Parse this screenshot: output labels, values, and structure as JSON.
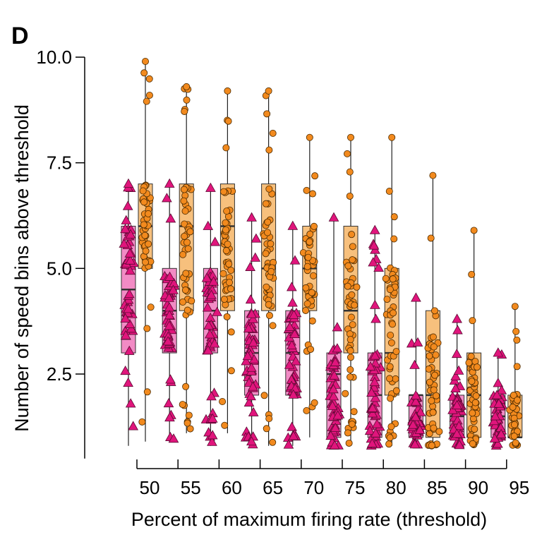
{
  "panel_label": "D",
  "chart_data": {
    "type": "box",
    "title": "",
    "xlabel": "Percent of maximum firing rate (threshold)",
    "ylabel": "Number of speed bins above threshold",
    "categories": [
      "50",
      "55",
      "60",
      "65",
      "70",
      "75",
      "80",
      "85",
      "90",
      "95"
    ],
    "ylim": [
      0.5,
      10.0
    ],
    "yticks": [
      "2.5",
      "5.0",
      "7.5",
      "10.0"
    ],
    "grid": false,
    "legend": "none",
    "series": [
      {
        "marker": "triangle",
        "color": "#e0157c",
        "box_color": "#f28bc5",
        "boxes": [
          {
            "min": 0.8,
            "q1": 3.0,
            "median": 4.5,
            "q3": 6.0,
            "max": 7.0
          },
          {
            "min": 0.9,
            "q1": 3.0,
            "median": 4.0,
            "q3": 5.0,
            "max": 7.0
          },
          {
            "min": 0.8,
            "q1": 3.0,
            "median": 4.0,
            "q3": 5.0,
            "max": 6.9
          },
          {
            "min": 0.8,
            "q1": 2.0,
            "median": 3.0,
            "q3": 4.0,
            "max": 6.2
          },
          {
            "min": 0.8,
            "q1": 2.0,
            "median": 3.0,
            "q3": 4.0,
            "max": 6.0
          },
          {
            "min": 0.8,
            "q1": 1.0,
            "median": 2.5,
            "q3": 3.0,
            "max": 6.2
          },
          {
            "min": 0.8,
            "q1": 1.0,
            "median": 2.0,
            "q3": 3.0,
            "max": 5.9
          },
          {
            "min": 0.8,
            "q1": 1.0,
            "median": 2.0,
            "q3": 2.0,
            "max": 4.3
          },
          {
            "min": 0.8,
            "q1": 1.0,
            "median": 1.5,
            "q3": 2.0,
            "max": 3.8
          },
          {
            "min": 0.8,
            "q1": 1.0,
            "median": 1.5,
            "q3": 2.0,
            "max": 3.0
          }
        ]
      },
      {
        "marker": "circle",
        "color": "#f28a1e",
        "box_color": "#f7c07d",
        "boxes": [
          {
            "min": 0.9,
            "q1": 5.0,
            "median": 6.0,
            "q3": 7.0,
            "max": 9.9
          },
          {
            "min": 1.1,
            "q1": 4.0,
            "median": 6.0,
            "q3": 7.0,
            "max": 9.3
          },
          {
            "min": 1.1,
            "q1": 4.0,
            "median": 6.0,
            "q3": 7.0,
            "max": 9.2
          },
          {
            "min": 0.8,
            "q1": 4.0,
            "median": 5.0,
            "q3": 7.0,
            "max": 9.2
          },
          {
            "min": 1.0,
            "q1": 4.0,
            "median": 5.0,
            "q3": 6.0,
            "max": 8.1
          },
          {
            "min": 0.8,
            "q1": 3.0,
            "median": 4.0,
            "q3": 6.0,
            "max": 8.1
          },
          {
            "min": 0.8,
            "q1": 2.0,
            "median": 3.0,
            "q3": 5.0,
            "max": 8.1
          },
          {
            "min": 0.8,
            "q1": 1.0,
            "median": 2.0,
            "q3": 4.0,
            "max": 7.2
          },
          {
            "min": 0.8,
            "q1": 1.0,
            "median": 2.0,
            "q3": 3.0,
            "max": 5.9
          },
          {
            "min": 0.8,
            "q1": 1.0,
            "median": 1.0,
            "q3": 2.0,
            "max": 4.1
          }
        ]
      }
    ]
  }
}
